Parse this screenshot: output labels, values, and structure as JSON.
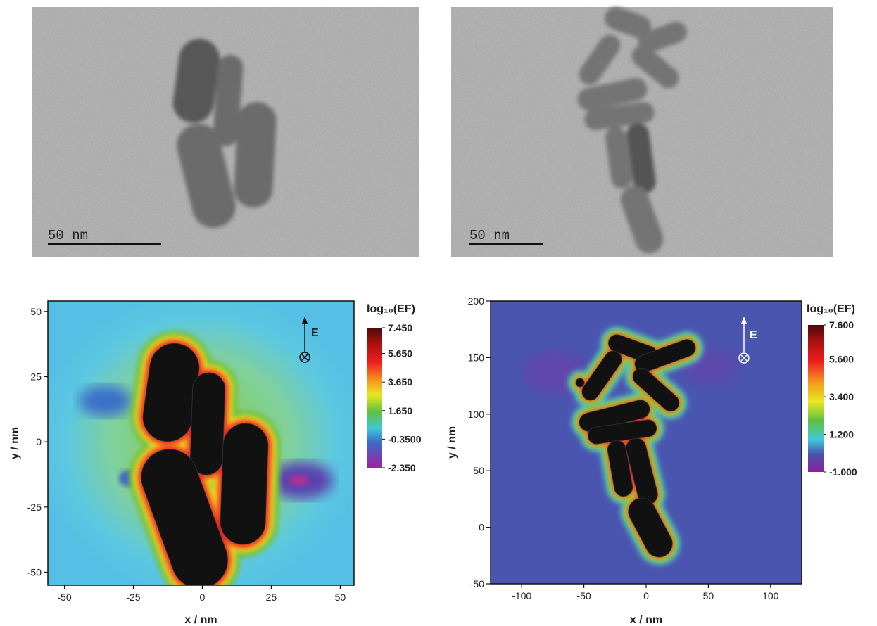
{
  "tem_images": [
    {
      "scale_bar": "50 nm"
    },
    {
      "scale_bar": "50 nm"
    }
  ],
  "field_maps": [
    {
      "xlabel": "x / nm",
      "ylabel": "y / nm",
      "xlim": [
        -56,
        55
      ],
      "ylim": [
        -55,
        54
      ],
      "xticks": [
        -50,
        -25,
        0,
        25,
        50
      ],
      "yticks": [
        -50,
        -25,
        0,
        25,
        50
      ],
      "field_label": "E",
      "colorbar_title": "log₁₀(EF)",
      "clim": [
        -2.35,
        7.45
      ],
      "colorbar_ticks": [
        {
          "value": 7.45,
          "label": "7.450"
        },
        {
          "value": 5.65,
          "label": "5.650"
        },
        {
          "value": 3.65,
          "label": "3.650"
        },
        {
          "value": 1.65,
          "label": "1.650"
        },
        {
          "value": -0.35,
          "label": "-0.3500"
        },
        {
          "value": -2.35,
          "label": "-2.350"
        }
      ]
    },
    {
      "xlabel": "x / nm",
      "ylabel": "y / nm",
      "xlim": [
        -125,
        125
      ],
      "ylim": [
        -50,
        200
      ],
      "xticks": [
        -100,
        -50,
        0,
        50,
        100
      ],
      "yticks": [
        -50,
        0,
        50,
        100,
        150,
        200
      ],
      "field_label": "E",
      "colorbar_title": "log₁₀(EF)",
      "clim": [
        -1,
        7.6
      ],
      "colorbar_ticks": [
        {
          "value": 7.6,
          "label": "7.600"
        },
        {
          "value": 5.6,
          "label": "5.600"
        },
        {
          "value": 3.4,
          "label": "3.400"
        },
        {
          "value": 1.2,
          "label": "1.200"
        },
        {
          "value": -1,
          "label": "-1.000"
        }
      ]
    }
  ]
}
